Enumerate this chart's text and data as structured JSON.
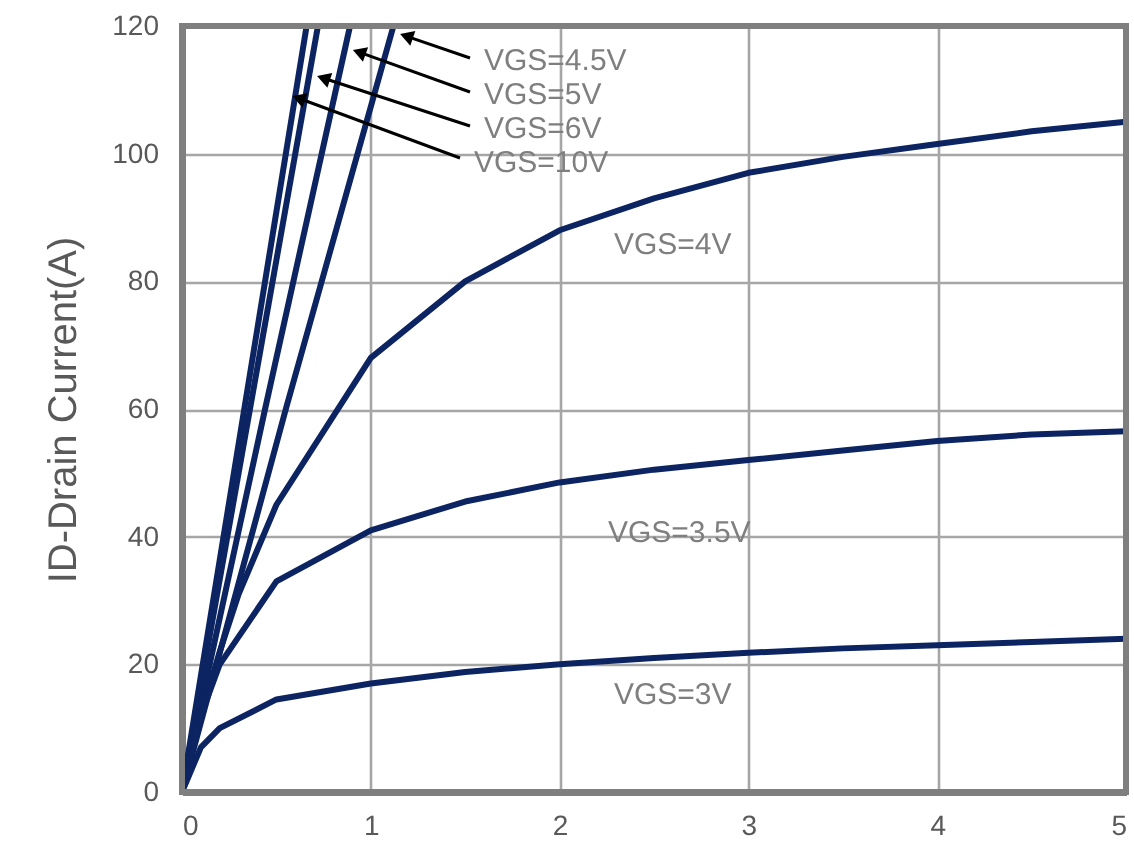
{
  "chart_data": {
    "type": "line",
    "ylabel": "ID-Drain Current(A)",
    "xlim": [
      0,
      5
    ],
    "ylim": [
      0,
      120
    ],
    "xticks": [
      0,
      1,
      2,
      3,
      4,
      5
    ],
    "yticks": [
      0,
      20,
      40,
      60,
      80,
      100,
      120
    ],
    "grid": true,
    "marker": "none",
    "line_style": "solid",
    "series": [
      {
        "color": "#0c2461",
        "x": [
          0,
          0.33,
          0.66
        ],
        "values": [
          0,
          60,
          120
        ]
      },
      {
        "color": "#0c2461",
        "x": [
          0,
          0.36,
          0.72
        ],
        "values": [
          0,
          60,
          120
        ]
      },
      {
        "color": "#0c2461",
        "x": [
          0,
          0.44,
          0.89
        ],
        "values": [
          0,
          60,
          120
        ]
      },
      {
        "color": "#0c2461",
        "x": [
          0,
          0.55,
          1.12
        ],
        "values": [
          0,
          60,
          120
        ]
      },
      {
        "color": "#0c2461",
        "x": [
          0,
          0.1,
          0.2,
          0.3,
          0.5,
          1,
          1.5,
          2,
          2.5,
          3,
          3.5,
          4,
          4.5,
          5
        ],
        "values": [
          0,
          12,
          22,
          31,
          45,
          68,
          80,
          88,
          93,
          97,
          99.5,
          101.5,
          103.5,
          105
        ]
      },
      {
        "color": "#0c2461",
        "x": [
          0,
          0.1,
          0.2,
          0.5,
          1,
          1.5,
          2,
          2.5,
          3,
          3.5,
          4,
          4.5,
          5
        ],
        "values": [
          0,
          12,
          20,
          33,
          41,
          45.5,
          48.5,
          50.5,
          52,
          53.5,
          55,
          56,
          56.5
        ]
      },
      {
        "color": "#0c2461",
        "x": [
          0,
          0.1,
          0.2,
          0.5,
          1,
          1.5,
          2,
          2.5,
          3,
          3.5,
          4,
          4.5,
          5
        ],
        "values": [
          0,
          7,
          10,
          14.5,
          17,
          18.8,
          20,
          21,
          21.8,
          22.5,
          23,
          23.5,
          24
        ]
      }
    ],
    "annotations": [
      {
        "text": "VGS=4.5V",
        "x": 1.15,
        "y": 118.8
      },
      {
        "text": "VGS=5V",
        "x": 0.9,
        "y": 116.3
      },
      {
        "text": "VGS=6V",
        "x": 0.71,
        "y": 112.2
      },
      {
        "text": "VGS=10V",
        "x": 0.58,
        "y": 109.1
      },
      "VGS=4V",
      "VGS=3.5V",
      "VGS=3V"
    ]
  }
}
